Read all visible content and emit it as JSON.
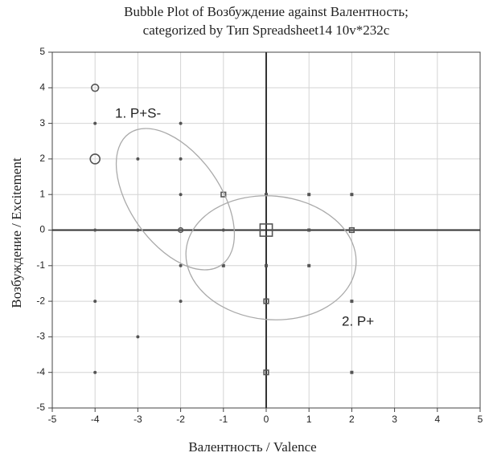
{
  "chart_data": {
    "type": "bubble",
    "title": "Bubble Plot of Возбуждение against Валентность;",
    "subtitle": "categorized by Тип Spreadsheet14 10v*232c",
    "xlabel": "Валентность / Valence",
    "ylabel": "Возбуждение / Excitement",
    "xlim": [
      -5,
      5
    ],
    "ylim": [
      -5,
      5
    ],
    "xticks": [
      -5,
      -4,
      -3,
      -2,
      -1,
      0,
      1,
      2,
      3,
      4,
      5
    ],
    "yticks": [
      -5,
      -4,
      -3,
      -2,
      -1,
      0,
      1,
      2,
      3,
      4,
      5
    ],
    "grid": true,
    "zero_lines": true,
    "series": [
      {
        "name": "1. P+S-",
        "marker": "circle",
        "color": "#555555",
        "x": [
          -4,
          -4,
          -4,
          -4,
          -4,
          -4,
          -3,
          -3,
          -3,
          -2,
          -2,
          -2,
          -2,
          -2,
          -2,
          -1
        ],
        "values": [
          4,
          3,
          2,
          0,
          -2,
          -4,
          2,
          0,
          -3,
          3,
          2,
          1,
          0,
          -1,
          -2,
          0
        ],
        "sizes": [
          3,
          1,
          4,
          1,
          1,
          1,
          1,
          1,
          1,
          1,
          1,
          1,
          2,
          1,
          1,
          1
        ]
      },
      {
        "name": "2. P+",
        "marker": "square",
        "color": "#555555",
        "x": [
          0,
          0,
          0,
          -1,
          2,
          1,
          0,
          0,
          1,
          2,
          2,
          2,
          1,
          -1
        ],
        "values": [
          0,
          -2,
          -4,
          1,
          0,
          0,
          -1,
          1,
          1,
          1,
          -2,
          -4,
          -1,
          -1
        ],
        "sizes": [
          5,
          2,
          2,
          2,
          2,
          1,
          1,
          1,
          1,
          1,
          1,
          1,
          1,
          1
        ]
      }
    ]
  }
}
